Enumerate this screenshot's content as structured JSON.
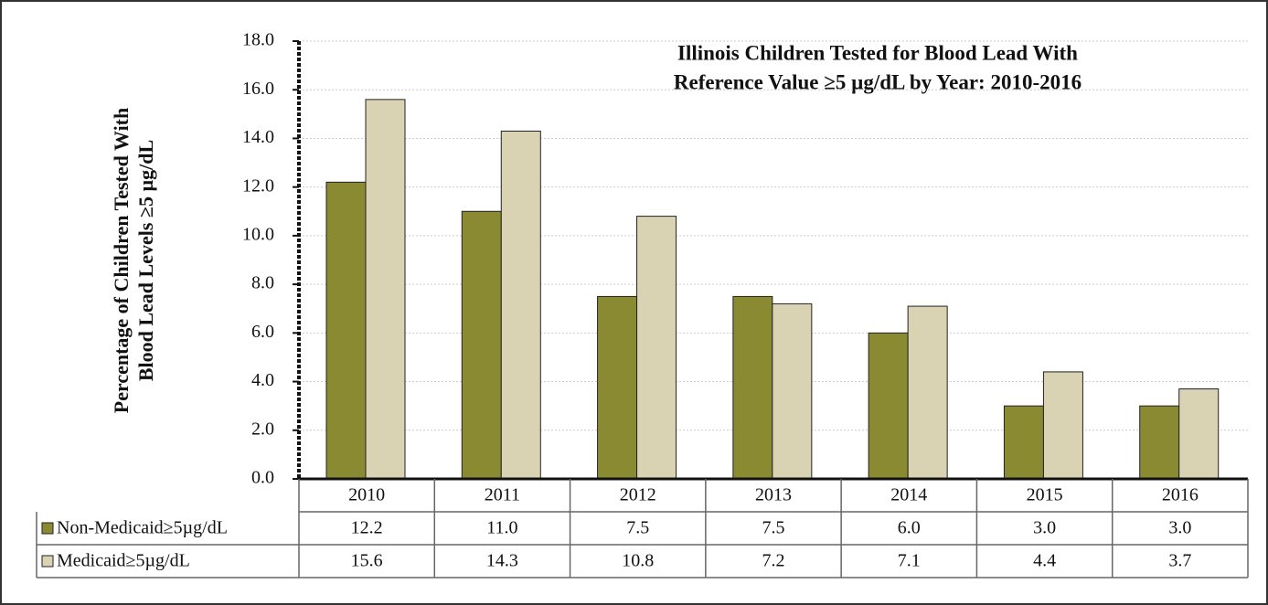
{
  "chart_data": {
    "type": "bar",
    "title": [
      "Illinois Children Tested for Blood Lead With",
      "Reference Value ≥5 µg/dL by Year: 2010-2016"
    ],
    "ylabel": [
      "Percentage of Children Tested With",
      "Blood Lead Levels ≥5 µg/dL"
    ],
    "categories": [
      "2010",
      "2011",
      "2012",
      "2013",
      "2014",
      "2015",
      "2016"
    ],
    "series": [
      {
        "name": "Non-Medicaid≥5µg/dL",
        "color": "#8a8a32",
        "values": [
          12.2,
          11.0,
          7.5,
          7.5,
          6.0,
          3.0,
          3.0
        ],
        "value_labels": [
          "12.2",
          "11.0",
          "7.5",
          "7.5",
          "6.0",
          "3.0",
          "3.0"
        ]
      },
      {
        "name": "Medicaid≥5µg/dL",
        "color": "#d9d3b4",
        "values": [
          15.6,
          14.3,
          10.8,
          7.2,
          7.1,
          4.4,
          3.7
        ],
        "value_labels": [
          "15.6",
          "14.3",
          "10.8",
          "7.2",
          "7.1",
          "4.4",
          "3.7"
        ]
      }
    ],
    "ylim": [
      0,
      18
    ],
    "yticks": [
      {
        "value": 0,
        "label": "0.0"
      },
      {
        "value": 2,
        "label": "2.0"
      },
      {
        "value": 4,
        "label": "4.0"
      },
      {
        "value": 6,
        "label": "6.0"
      },
      {
        "value": 8,
        "label": "8.0"
      },
      {
        "value": 10,
        "label": "10.0"
      },
      {
        "value": 12,
        "label": "12.0"
      },
      {
        "value": 14,
        "label": "14.0"
      },
      {
        "value": 16,
        "label": "16.0"
      },
      {
        "value": 18,
        "label": "18.0"
      }
    ],
    "grid": true
  }
}
